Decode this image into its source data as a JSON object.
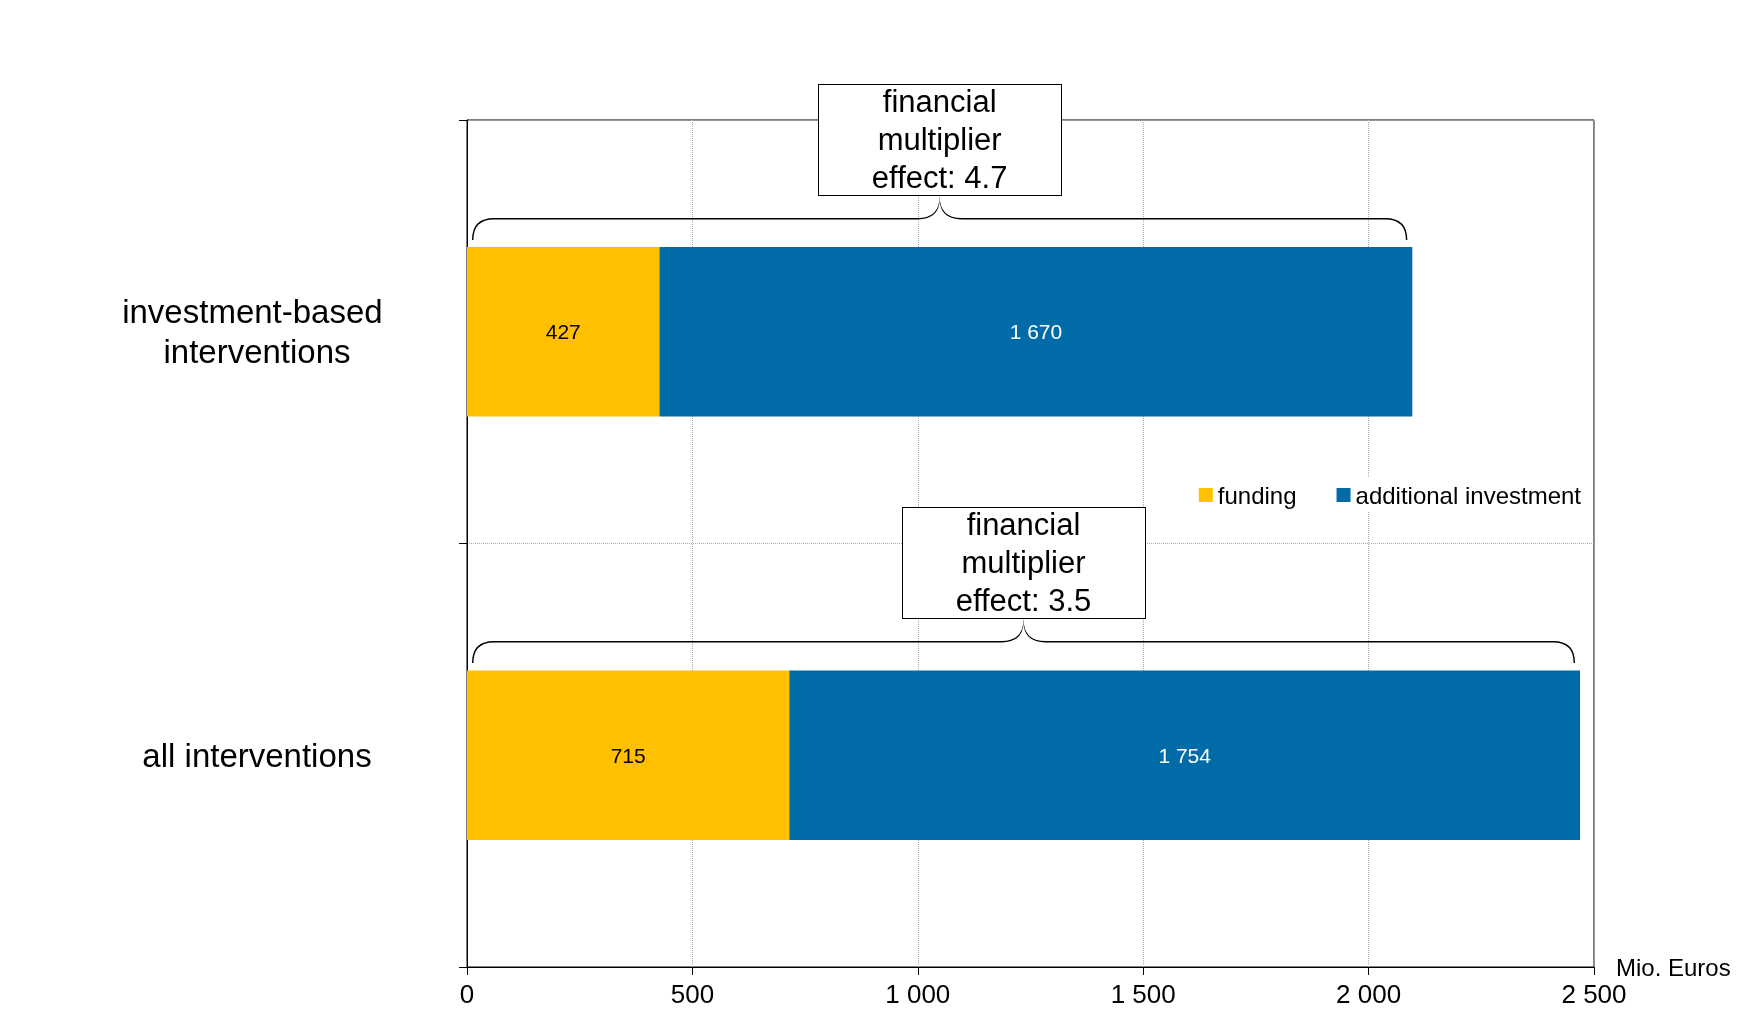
{
  "chart_data": {
    "type": "bar",
    "orientation": "horizontal",
    "stacked": true,
    "categories": [
      "investment-based interventions",
      "all interventions"
    ],
    "series": [
      {
        "name": "funding",
        "color": "#ffc000",
        "values": [
          427,
          715
        ],
        "value_labels": [
          "427",
          "715"
        ]
      },
      {
        "name": "additional investment",
        "color": "#006ba6",
        "values": [
          1670,
          1754
        ],
        "value_labels": [
          "1 670",
          "1 754"
        ]
      }
    ],
    "xlim": [
      0,
      2500
    ],
    "xticks": [
      0,
      500,
      {
        "value": 1000,
        "label": "1 000"
      },
      {
        "value": 1500,
        "label": "1 500"
      },
      {
        "value": 2000,
        "label": "2 000"
      },
      {
        "value": 2500,
        "label": "2 500"
      }
    ],
    "xlabel": "Mio. Euros",
    "grid": true,
    "legend": "right",
    "annotations": [
      "financial multiplier effect: 4.7",
      "financial multiplier effect: 3.5"
    ]
  }
}
